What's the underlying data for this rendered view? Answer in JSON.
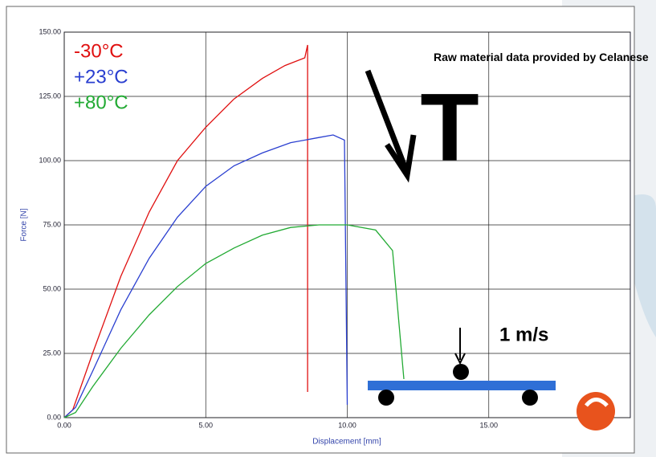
{
  "chart_data": {
    "type": "line",
    "y_label": "Force [N]",
    "x_label": "Displacement [mm]",
    "annotations": [
      "Raw material data provided by Celanese",
      "T",
      "1 m/s"
    ],
    "xlim": [
      0,
      20
    ],
    "ylim": [
      0,
      150
    ],
    "xticks": [
      {
        "value": 0,
        "label": "0.00"
      },
      {
        "value": 5,
        "label": "5.00"
      },
      {
        "value": 10,
        "label": "10.00"
      },
      {
        "value": 15,
        "label": "15.00"
      }
    ],
    "yticks": [
      {
        "value": 0,
        "label": "0.00"
      },
      {
        "value": 25,
        "label": "25.00"
      },
      {
        "value": 50,
        "label": "50.00"
      },
      {
        "value": 75,
        "label": "75.00"
      },
      {
        "value": 100,
        "label": "100.00"
      },
      {
        "value": 125,
        "label": "125.00"
      },
      {
        "value": 150,
        "label": "150.00"
      }
    ],
    "grid": true,
    "series": [
      {
        "name": "-30°C",
        "color": "#e01010",
        "x": [
          0,
          0.3,
          1,
          2,
          3,
          4,
          5,
          6,
          7,
          7.8,
          8.5,
          8.6,
          8.6
        ],
        "values": [
          0,
          3,
          25,
          55,
          80,
          100,
          113,
          124,
          132,
          137,
          140,
          145,
          10
        ]
      },
      {
        "name": "+23°C",
        "color": "#2a3fd0",
        "x": [
          0,
          0.4,
          1,
          2,
          3,
          4,
          5,
          6,
          7,
          8,
          9,
          9.5,
          9.9,
          10
        ],
        "values": [
          0,
          4,
          18,
          42,
          62,
          78,
          90,
          98,
          103,
          107,
          109,
          110,
          108,
          5
        ]
      },
      {
        "name": "+80°C",
        "color": "#22aa33",
        "x": [
          0,
          0.4,
          1,
          2,
          3,
          4,
          5,
          6,
          7,
          8,
          9,
          10,
          11,
          11.6,
          12
        ],
        "values": [
          0,
          2,
          12,
          27,
          40,
          51,
          60,
          66,
          71,
          74,
          75,
          75,
          73,
          65,
          15
        ]
      }
    ]
  }
}
